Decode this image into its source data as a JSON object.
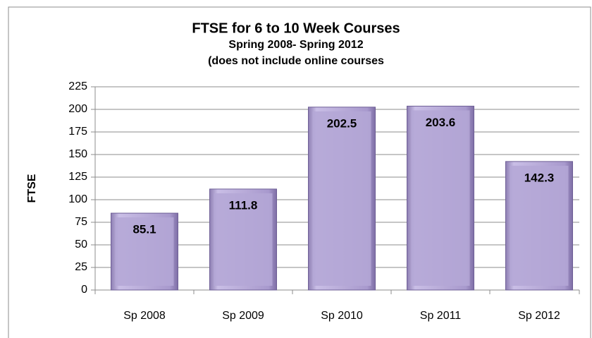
{
  "chart_data": {
    "type": "bar",
    "title": "FTSE for 6 to 10 Week Courses",
    "subtitle": [
      "Spring 2008- Spring 2012",
      "(does not include online courses"
    ],
    "y_label": "FTSE",
    "categories": [
      "Sp 2008",
      "Sp 2009",
      "Sp 2010",
      "Sp 2011",
      "Sp 2012"
    ],
    "values": [
      85.1,
      111.8,
      202.5,
      203.6,
      142.3
    ],
    "color": "#b4a7d6",
    "ylim": [
      0,
      225
    ],
    "yticks": [
      0,
      25,
      50,
      75,
      100,
      125,
      150,
      175,
      200,
      225
    ],
    "grid": true
  }
}
